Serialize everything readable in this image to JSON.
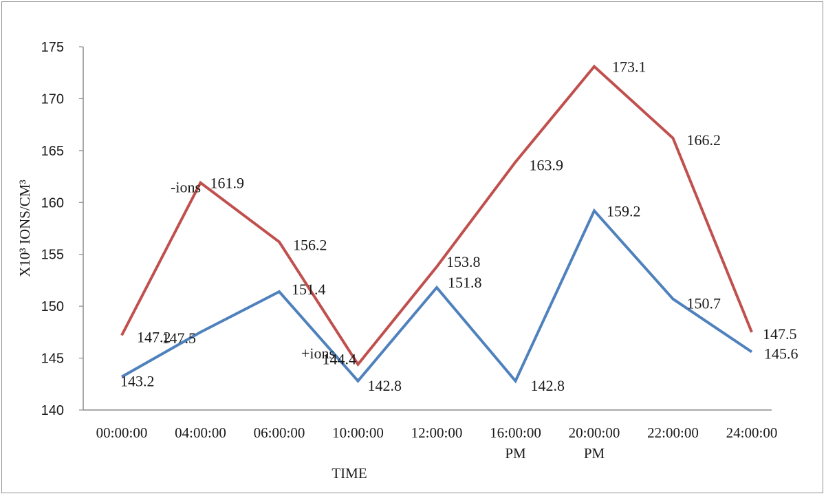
{
  "chart_data": {
    "type": "line",
    "categories": [
      [
        "00:00:00"
      ],
      [
        "04:00:00"
      ],
      [
        "06:00:00"
      ],
      [
        "10:00:00"
      ],
      [
        "12:00:00"
      ],
      [
        "16:00:00",
        "PM"
      ],
      [
        "20:00:00",
        "PM"
      ],
      [
        "22:00:00"
      ],
      [
        "24:00:00"
      ]
    ],
    "series": [
      {
        "name": "-ions",
        "color": "#c0504d",
        "values": [
          147.2,
          161.9,
          156.2,
          144.4,
          153.8,
          163.9,
          173.1,
          166.2,
          147.5
        ],
        "labels": [
          "147.2",
          "161.9",
          "156.2",
          "144.4",
          "153.8",
          "163.9",
          "173.1",
          "166.2",
          "147.5"
        ]
      },
      {
        "name": "+ions",
        "color": "#4f81bd",
        "values": [
          143.2,
          147.5,
          151.4,
          142.8,
          151.8,
          142.8,
          159.2,
          150.7,
          145.6
        ],
        "labels": [
          "143.2",
          "147.5",
          "151.4",
          "142.8",
          "151.8",
          "142.8",
          "159.2",
          "150.7",
          "145.6"
        ]
      }
    ],
    "xlabel": "TIME",
    "ylabel": "X10³ IONS/CM³",
    "ylim": [
      140,
      175
    ],
    "yticks": [
      "140",
      "145",
      "150",
      "155",
      "160",
      "165",
      "170",
      "175"
    ],
    "grid": false,
    "legend": "none"
  }
}
